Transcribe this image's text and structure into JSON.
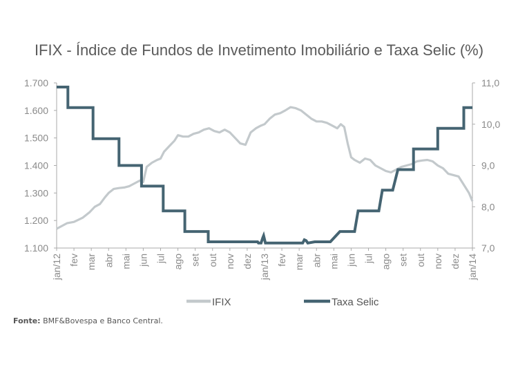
{
  "chart_data": {
    "type": "line",
    "title": "IFIX - Índice de Fundos de Invetimento Imobiliário e Taxa Selic (%)",
    "x_tick_labels": [
      "jan/12",
      "fev",
      "mar",
      "abr",
      "mai",
      "jun",
      "jul",
      "ago",
      "set",
      "out",
      "nov",
      "dez",
      "jan/13",
      "fev",
      "mar",
      "abr",
      "mai",
      "jun",
      "jul",
      "ago",
      "set",
      "out",
      "nov",
      "dez",
      "jan/14"
    ],
    "y_left": {
      "ticks": [
        "1.700",
        "1.600",
        "1.500",
        "1.400",
        "1.300",
        "1.200",
        "1.100"
      ],
      "range": [
        1100,
        1700
      ]
    },
    "y_right": {
      "ticks": [
        "11,0",
        "10,0",
        "9,0",
        "8,0",
        "7,0"
      ],
      "range": [
        7.0,
        11.0
      ]
    },
    "grid": false,
    "legend_position": "bottom",
    "series": [
      {
        "name": "IFIX",
        "axis": "left",
        "color": "#c3c9cc",
        "x": [
          0,
          0.3,
          0.6,
          1,
          1.5,
          1.9,
          2.2,
          2.5,
          2.8,
          3,
          3.3,
          3.6,
          3.9,
          4.2,
          4.5,
          4.8,
          5,
          5.2,
          5.5,
          5.8,
          6,
          6.2,
          6.5,
          6.8,
          7,
          7.3,
          7.6,
          7.9,
          8.2,
          8.5,
          8.8,
          9.1,
          9.4,
          9.7,
          10,
          10.3,
          10.6,
          10.9,
          11.2,
          11.5,
          11.8,
          12,
          12.3,
          12.6,
          12.9,
          13.2,
          13.5,
          13.8,
          14.1,
          14.4,
          14.7,
          15,
          15.3,
          15.6,
          15.9,
          16.2,
          16.4,
          16.6,
          16.8,
          17,
          17.2,
          17.5,
          17.8,
          18.1,
          18.4,
          18.7,
          19,
          19.3,
          19.6,
          19.9,
          20.2,
          20.5,
          20.8,
          21.1,
          21.4,
          21.7,
          22,
          22.3,
          22.6,
          22.9,
          23.2,
          23.5,
          23.8,
          24
        ],
        "values": [
          1170,
          1180,
          1190,
          1195,
          1210,
          1230,
          1250,
          1260,
          1285,
          1300,
          1315,
          1318,
          1320,
          1325,
          1335,
          1345,
          1340,
          1395,
          1410,
          1420,
          1425,
          1450,
          1470,
          1490,
          1510,
          1505,
          1505,
          1515,
          1520,
          1530,
          1535,
          1525,
          1520,
          1530,
          1520,
          1500,
          1480,
          1475,
          1520,
          1535,
          1545,
          1550,
          1570,
          1585,
          1590,
          1600,
          1612,
          1608,
          1600,
          1585,
          1570,
          1560,
          1560,
          1555,
          1545,
          1535,
          1550,
          1540,
          1480,
          1430,
          1420,
          1410,
          1425,
          1420,
          1400,
          1390,
          1380,
          1375,
          1385,
          1395,
          1400,
          1405,
          1415,
          1418,
          1420,
          1415,
          1400,
          1390,
          1370,
          1365,
          1360,
          1330,
          1300,
          1270
        ]
      },
      {
        "name": "Taxa Selic",
        "axis": "right",
        "color": "#456472",
        "x": [
          0,
          0.65,
          0.65,
          2.1,
          2.1,
          3.6,
          3.6,
          4.9,
          4.9,
          6.15,
          6.15,
          7.4,
          7.4,
          8.75,
          8.75,
          10,
          10,
          11.3,
          11.6,
          11.65,
          11.8,
          11.9,
          11.95,
          12.05,
          12.1,
          12.15,
          12.5,
          13,
          13.5,
          14,
          14.2,
          14.3,
          14.4,
          14.5,
          14.9,
          15,
          15.1,
          15.7,
          15.8,
          16.35,
          16.5,
          17.2,
          17.4,
          18.6,
          18.8,
          19.4,
          19.7,
          20.6,
          20.6,
          22,
          22,
          23.5,
          23.5,
          24,
          24
        ],
        "values": [
          10.9,
          10.9,
          10.4,
          10.4,
          9.65,
          9.65,
          9.0,
          9.0,
          8.5,
          8.5,
          7.9,
          7.9,
          7.4,
          7.4,
          7.15,
          7.15,
          7.15,
          7.15,
          7.15,
          7.12,
          7.12,
          7.25,
          7.3,
          7.12,
          7.12,
          7.12,
          7.12,
          7.12,
          7.12,
          7.12,
          7.12,
          7.2,
          7.18,
          7.12,
          7.15,
          7.15,
          7.15,
          7.15,
          7.15,
          7.4,
          7.4,
          7.4,
          7.9,
          7.9,
          8.4,
          8.4,
          8.9,
          8.9,
          9.4,
          9.4,
          9.9,
          9.9,
          10.4,
          10.4,
          10.4
        ]
      }
    ]
  },
  "source": {
    "label": "Fonte:",
    "text": "BMF&Bovespa e Banco Central."
  }
}
